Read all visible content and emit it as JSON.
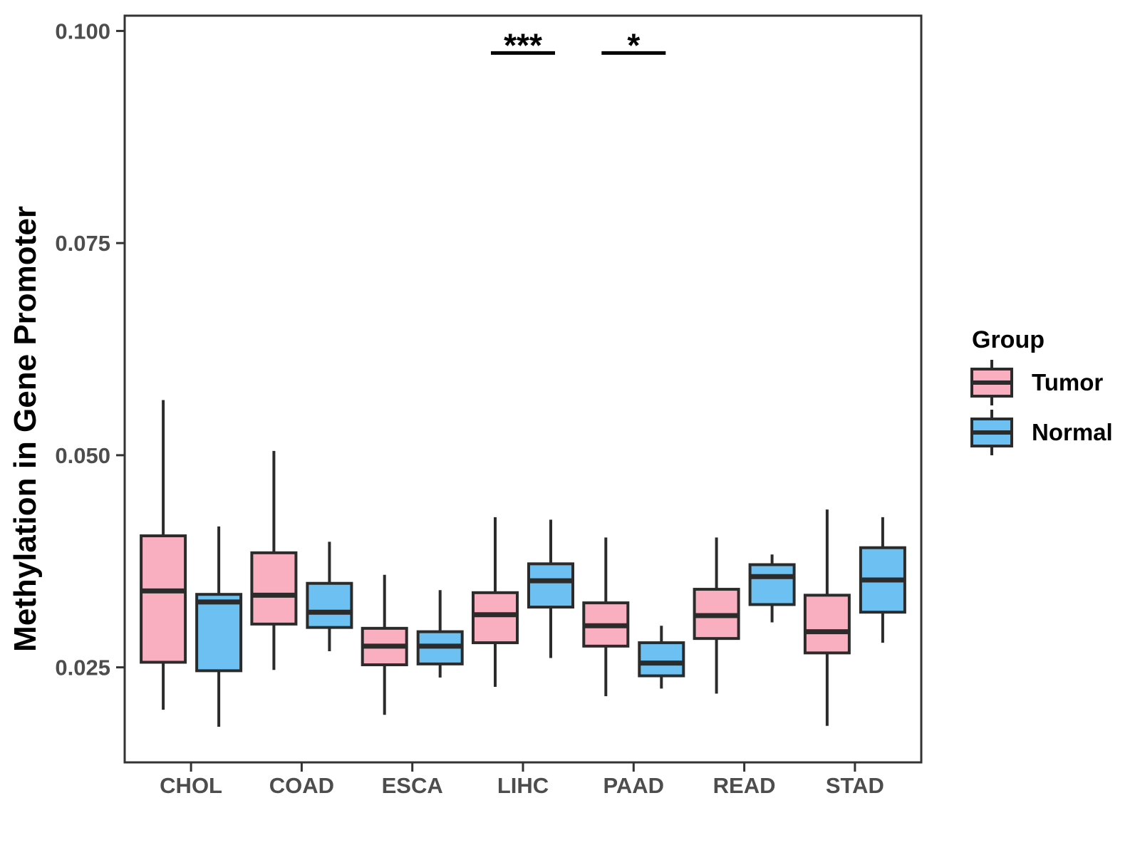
{
  "y_axis": {
    "label": "Methylation in Gene Promoter",
    "tick_labels": [
      "0.025",
      "0.050",
      "0.075",
      "0.100"
    ]
  },
  "legend": {
    "title": "Group",
    "items": [
      {
        "label": "Tumor",
        "color": "#FAAFC1"
      },
      {
        "label": "Normal",
        "color": "#6CC1F2"
      }
    ]
  },
  "colors": {
    "tumor_fill": "#FAAFC1",
    "normal_fill": "#6CC1F2",
    "box_stroke": "#2B2B2B",
    "axis_text": "#4D4D4D",
    "panel_border": "#333333",
    "annotation": "#000000"
  },
  "chart_data": {
    "type": "boxplot",
    "title": "",
    "xlabel": "",
    "ylabel": "Methylation in Gene Promoter",
    "categories": [
      "CHOL",
      "COAD",
      "ESCA",
      "LIHC",
      "PAAD",
      "READ",
      "STAD"
    ],
    "yticks": [
      0.025,
      0.05,
      0.075,
      0.1
    ],
    "ytick_labels": [
      "0.025",
      "0.050",
      "0.075",
      "0.100"
    ],
    "ylim": [
      0.0138,
      0.1018
    ],
    "grid": false,
    "legend_position": "right",
    "series": [
      {
        "name": "Tumor",
        "color": "#FAAFC1",
        "boxes": [
          {
            "category": "CHOL",
            "min": 0.02,
            "q1": 0.0256,
            "median": 0.034,
            "q3": 0.0405,
            "max": 0.0565
          },
          {
            "category": "COAD",
            "min": 0.0247,
            "q1": 0.0301,
            "median": 0.0335,
            "q3": 0.0385,
            "max": 0.0505
          },
          {
            "category": "ESCA",
            "min": 0.0194,
            "q1": 0.0253,
            "median": 0.0275,
            "q3": 0.0296,
            "max": 0.0359
          },
          {
            "category": "LIHC",
            "min": 0.0227,
            "q1": 0.0279,
            "median": 0.0312,
            "q3": 0.0338,
            "max": 0.0427
          },
          {
            "category": "PAAD",
            "min": 0.0216,
            "q1": 0.0275,
            "median": 0.0299,
            "q3": 0.0326,
            "max": 0.0403
          },
          {
            "category": "READ",
            "min": 0.0219,
            "q1": 0.0284,
            "median": 0.0311,
            "q3": 0.0342,
            "max": 0.0403
          },
          {
            "category": "STAD",
            "min": 0.0181,
            "q1": 0.0267,
            "median": 0.0292,
            "q3": 0.0335,
            "max": 0.0436
          }
        ]
      },
      {
        "name": "Normal",
        "color": "#6CC1F2",
        "boxes": [
          {
            "category": "CHOL",
            "min": 0.018,
            "q1": 0.0246,
            "median": 0.0327,
            "q3": 0.0336,
            "max": 0.0416
          },
          {
            "category": "COAD",
            "min": 0.0269,
            "q1": 0.0297,
            "median": 0.0315,
            "q3": 0.0349,
            "max": 0.0398
          },
          {
            "category": "ESCA",
            "min": 0.0238,
            "q1": 0.0254,
            "median": 0.0275,
            "q3": 0.0292,
            "max": 0.0341
          },
          {
            "category": "LIHC",
            "min": 0.0261,
            "q1": 0.0321,
            "median": 0.0352,
            "q3": 0.0372,
            "max": 0.0424
          },
          {
            "category": "PAAD",
            "min": 0.0225,
            "q1": 0.024,
            "median": 0.0255,
            "q3": 0.0279,
            "max": 0.0299
          },
          {
            "category": "READ",
            "min": 0.0303,
            "q1": 0.0324,
            "median": 0.0357,
            "q3": 0.0371,
            "max": 0.0383
          },
          {
            "category": "STAD",
            "min": 0.0279,
            "q1": 0.0315,
            "median": 0.0353,
            "q3": 0.0391,
            "max": 0.0427
          }
        ]
      }
    ],
    "significance": [
      {
        "category": "LIHC",
        "label": "***",
        "y": 0.0974
      },
      {
        "category": "PAAD",
        "label": "*",
        "y": 0.0974
      }
    ]
  }
}
